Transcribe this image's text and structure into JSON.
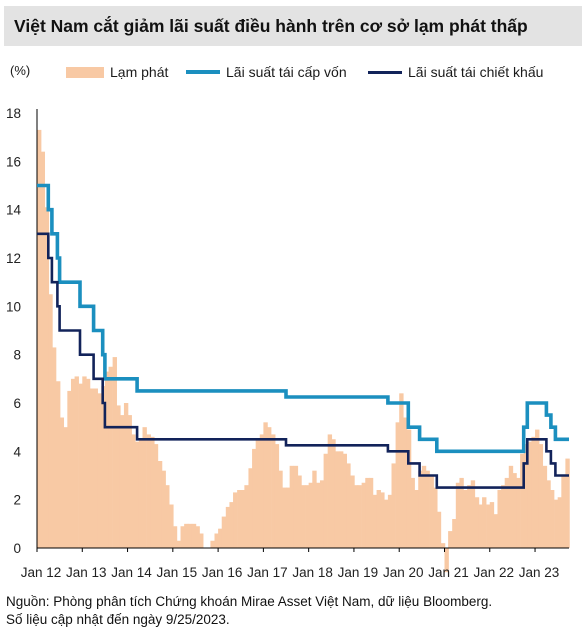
{
  "title": "Việt Nam cắt giảm lãi suất điều hành trên cơ sở lạm phát thấp",
  "source_line1": "Nguồn: Phòng phân tích Chứng khoán Mirae Asset Việt Nam, dữ liệu Bloomberg.",
  "source_line2": "Số liệu cập nhật đến ngày 9/25/2023.",
  "colors": {
    "inflation": "#f8c9a4",
    "refinancing": "#1b8fbf",
    "discount": "#12235a",
    "title_bg": "#e3e3e3"
  },
  "chart_data": {
    "type": "area",
    "unit_label": "(%)",
    "ylim": [
      0,
      18
    ],
    "y_ticks": [
      0,
      2,
      4,
      6,
      8,
      10,
      12,
      14,
      16,
      18
    ],
    "xlim": [
      2012.0,
      2023.75
    ],
    "x_ticks": [
      {
        "t": 2012,
        "label": "Jan 12"
      },
      {
        "t": 2013,
        "label": "Jan 13"
      },
      {
        "t": 2014,
        "label": "Jan 14"
      },
      {
        "t": 2015,
        "label": "Jan 15"
      },
      {
        "t": 2016,
        "label": "Jan 16"
      },
      {
        "t": 2017,
        "label": "Jan 17"
      },
      {
        "t": 2018,
        "label": "Jan 18"
      },
      {
        "t": 2019,
        "label": "Jan 19"
      },
      {
        "t": 2020,
        "label": "Jan 20"
      },
      {
        "t": 2021,
        "label": "Jan 21"
      },
      {
        "t": 2022,
        "label": "Jan 22"
      },
      {
        "t": 2023,
        "label": "Jan 23"
      }
    ],
    "legend": [
      "Lạm phát",
      "Lãi suất tái cấp vốn",
      "Lãi suất tái chiết khấu"
    ],
    "inflation": [
      [
        2012.0,
        17.3
      ],
      [
        2012.08,
        16.4
      ],
      [
        2012.17,
        14.1
      ],
      [
        2012.25,
        10.5
      ],
      [
        2012.33,
        8.3
      ],
      [
        2012.42,
        6.9
      ],
      [
        2012.5,
        5.4
      ],
      [
        2012.58,
        5.0
      ],
      [
        2012.67,
        6.5
      ],
      [
        2012.75,
        7.0
      ],
      [
        2012.83,
        7.1
      ],
      [
        2012.92,
        6.8
      ],
      [
        2013.0,
        7.1
      ],
      [
        2013.08,
        7.0
      ],
      [
        2013.17,
        6.6
      ],
      [
        2013.25,
        6.6
      ],
      [
        2013.33,
        6.4
      ],
      [
        2013.42,
        6.7
      ],
      [
        2013.5,
        7.3
      ],
      [
        2013.58,
        7.5
      ],
      [
        2013.67,
        7.9
      ],
      [
        2013.75,
        5.9
      ],
      [
        2013.83,
        5.5
      ],
      [
        2013.92,
        6.0
      ],
      [
        2014.0,
        5.5
      ],
      [
        2014.08,
        4.7
      ],
      [
        2014.17,
        4.4
      ],
      [
        2014.25,
        4.5
      ],
      [
        2014.33,
        5.0
      ],
      [
        2014.42,
        4.7
      ],
      [
        2014.5,
        4.6
      ],
      [
        2014.58,
        4.3
      ],
      [
        2014.67,
        3.6
      ],
      [
        2014.75,
        3.2
      ],
      [
        2014.83,
        2.6
      ],
      [
        2014.92,
        1.8
      ],
      [
        2015.0,
        0.9
      ],
      [
        2015.08,
        0.3
      ],
      [
        2015.17,
        0.9
      ],
      [
        2015.25,
        1.0
      ],
      [
        2015.33,
        1.0
      ],
      [
        2015.42,
        1.0
      ],
      [
        2015.5,
        0.9
      ],
      [
        2015.58,
        0.6
      ],
      [
        2015.67,
        0.0
      ],
      [
        2015.75,
        0.0
      ],
      [
        2015.83,
        0.3
      ],
      [
        2015.92,
        0.6
      ],
      [
        2016.0,
        0.8
      ],
      [
        2016.08,
        1.3
      ],
      [
        2016.17,
        1.7
      ],
      [
        2016.25,
        1.9
      ],
      [
        2016.33,
        2.3
      ],
      [
        2016.42,
        2.4
      ],
      [
        2016.5,
        2.4
      ],
      [
        2016.58,
        2.6
      ],
      [
        2016.67,
        3.3
      ],
      [
        2016.75,
        4.1
      ],
      [
        2016.83,
        4.5
      ],
      [
        2016.92,
        4.7
      ],
      [
        2017.0,
        5.2
      ],
      [
        2017.08,
        5.0
      ],
      [
        2017.17,
        4.7
      ],
      [
        2017.25,
        4.3
      ],
      [
        2017.33,
        3.2
      ],
      [
        2017.42,
        2.5
      ],
      [
        2017.5,
        2.5
      ],
      [
        2017.58,
        3.4
      ],
      [
        2017.67,
        3.4
      ],
      [
        2017.75,
        3.0
      ],
      [
        2017.83,
        2.6
      ],
      [
        2017.92,
        2.6
      ],
      [
        2018.0,
        2.7
      ],
      [
        2018.08,
        3.2
      ],
      [
        2018.17,
        2.7
      ],
      [
        2018.25,
        2.8
      ],
      [
        2018.33,
        3.9
      ],
      [
        2018.42,
        4.7
      ],
      [
        2018.5,
        4.5
      ],
      [
        2018.58,
        4.0
      ],
      [
        2018.67,
        4.0
      ],
      [
        2018.75,
        3.9
      ],
      [
        2018.83,
        3.5
      ],
      [
        2018.92,
        3.0
      ],
      [
        2019.0,
        2.6
      ],
      [
        2019.08,
        2.6
      ],
      [
        2019.17,
        2.7
      ],
      [
        2019.25,
        2.9
      ],
      [
        2019.33,
        2.9
      ],
      [
        2019.42,
        2.2
      ],
      [
        2019.5,
        2.4
      ],
      [
        2019.58,
        2.3
      ],
      [
        2019.67,
        2.0
      ],
      [
        2019.75,
        2.2
      ],
      [
        2019.83,
        3.5
      ],
      [
        2019.92,
        5.2
      ],
      [
        2020.0,
        6.4
      ],
      [
        2020.08,
        5.4
      ],
      [
        2020.17,
        4.9
      ],
      [
        2020.25,
        2.9
      ],
      [
        2020.33,
        2.4
      ],
      [
        2020.42,
        3.2
      ],
      [
        2020.5,
        3.4
      ],
      [
        2020.58,
        3.2
      ],
      [
        2020.67,
        3.0
      ],
      [
        2020.75,
        2.5
      ],
      [
        2020.83,
        1.5
      ],
      [
        2020.92,
        0.2
      ],
      [
        2021.0,
        -1.0
      ],
      [
        2021.08,
        0.7
      ],
      [
        2021.17,
        1.2
      ],
      [
        2021.25,
        2.7
      ],
      [
        2021.33,
        2.9
      ],
      [
        2021.42,
        2.4
      ],
      [
        2021.5,
        2.6
      ],
      [
        2021.58,
        2.8
      ],
      [
        2021.67,
        2.1
      ],
      [
        2021.75,
        1.8
      ],
      [
        2021.83,
        2.1
      ],
      [
        2021.92,
        1.8
      ],
      [
        2022.0,
        1.9
      ],
      [
        2022.08,
        1.4
      ],
      [
        2022.17,
        2.4
      ],
      [
        2022.25,
        2.6
      ],
      [
        2022.33,
        2.9
      ],
      [
        2022.42,
        3.4
      ],
      [
        2022.5,
        3.1
      ],
      [
        2022.58,
        2.9
      ],
      [
        2022.67,
        3.9
      ],
      [
        2022.75,
        4.3
      ],
      [
        2022.83,
        4.4
      ],
      [
        2022.92,
        4.6
      ],
      [
        2023.0,
        4.9
      ],
      [
        2023.08,
        4.3
      ],
      [
        2023.17,
        3.4
      ],
      [
        2023.25,
        2.8
      ],
      [
        2023.33,
        2.4
      ],
      [
        2023.42,
        2.0
      ],
      [
        2023.5,
        2.1
      ],
      [
        2023.58,
        3.0
      ],
      [
        2023.67,
        3.7
      ]
    ],
    "refinancing_rate": [
      [
        2012.0,
        15
      ],
      [
        2012.25,
        15
      ],
      [
        2012.25,
        14
      ],
      [
        2012.33,
        14
      ],
      [
        2012.33,
        13
      ],
      [
        2012.45,
        13
      ],
      [
        2012.45,
        12
      ],
      [
        2012.5,
        12
      ],
      [
        2012.5,
        11
      ],
      [
        2012.95,
        11
      ],
      [
        2012.95,
        10
      ],
      [
        2013.25,
        10
      ],
      [
        2013.25,
        9
      ],
      [
        2013.45,
        9
      ],
      [
        2013.45,
        8
      ],
      [
        2013.5,
        8
      ],
      [
        2013.5,
        7
      ],
      [
        2014.21,
        7
      ],
      [
        2014.21,
        6.5
      ],
      [
        2017.5,
        6.5
      ],
      [
        2017.5,
        6.25
      ],
      [
        2019.75,
        6.25
      ],
      [
        2019.75,
        6.0
      ],
      [
        2020.2,
        6.0
      ],
      [
        2020.2,
        5.0
      ],
      [
        2020.45,
        5.0
      ],
      [
        2020.45,
        4.5
      ],
      [
        2020.83,
        4.5
      ],
      [
        2020.83,
        4.0
      ],
      [
        2022.75,
        4.0
      ],
      [
        2022.75,
        5.0
      ],
      [
        2022.83,
        5.0
      ],
      [
        2022.83,
        6.0
      ],
      [
        2023.25,
        6.0
      ],
      [
        2023.25,
        5.5
      ],
      [
        2023.35,
        5.5
      ],
      [
        2023.35,
        5.0
      ],
      [
        2023.45,
        5.0
      ],
      [
        2023.45,
        4.5
      ],
      [
        2023.75,
        4.5
      ]
    ],
    "discount_rate": [
      [
        2012.0,
        13
      ],
      [
        2012.25,
        13
      ],
      [
        2012.25,
        12
      ],
      [
        2012.33,
        12
      ],
      [
        2012.33,
        11
      ],
      [
        2012.45,
        11
      ],
      [
        2012.45,
        10
      ],
      [
        2012.5,
        10
      ],
      [
        2012.5,
        9
      ],
      [
        2012.95,
        9
      ],
      [
        2012.95,
        8
      ],
      [
        2013.25,
        8
      ],
      [
        2013.25,
        7
      ],
      [
        2013.45,
        7
      ],
      [
        2013.45,
        6
      ],
      [
        2013.5,
        6
      ],
      [
        2013.5,
        5
      ],
      [
        2014.21,
        5
      ],
      [
        2014.21,
        4.5
      ],
      [
        2017.5,
        4.5
      ],
      [
        2017.5,
        4.25
      ],
      [
        2019.75,
        4.25
      ],
      [
        2019.75,
        4.0
      ],
      [
        2020.2,
        4.0
      ],
      [
        2020.2,
        3.5
      ],
      [
        2020.45,
        3.5
      ],
      [
        2020.45,
        3.0
      ],
      [
        2020.83,
        3.0
      ],
      [
        2020.83,
        2.5
      ],
      [
        2022.75,
        2.5
      ],
      [
        2022.75,
        3.5
      ],
      [
        2022.83,
        3.5
      ],
      [
        2022.83,
        4.5
      ],
      [
        2023.25,
        4.5
      ],
      [
        2023.25,
        4.0
      ],
      [
        2023.35,
        4.0
      ],
      [
        2023.35,
        3.5
      ],
      [
        2023.45,
        3.5
      ],
      [
        2023.45,
        3.0
      ],
      [
        2023.75,
        3.0
      ]
    ]
  }
}
